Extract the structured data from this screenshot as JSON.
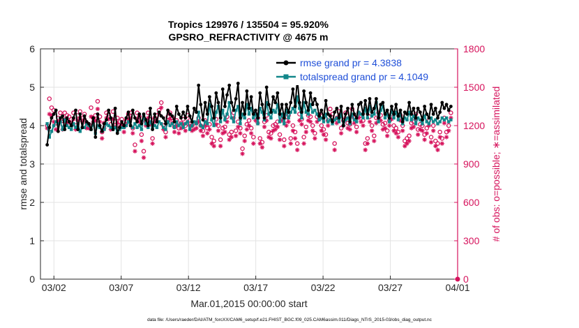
{
  "chart_data": {
    "type": "line",
    "title_line1": "Tropics 129976 / 135504 = 95.920%",
    "title_line2": "GPSRO_REFRACTIVITY @ 4675 m",
    "xlabel": "Mar.01,2015 00:00:00 start",
    "ylabel_left": "rmse and totalspread",
    "ylabel_right": "# of obs: o=possible; ∗=assimilated",
    "x_ticks": [
      "03/02",
      "03/07",
      "03/12",
      "03/17",
      "03/22",
      "03/27",
      "04/01"
    ],
    "x_tick_days": [
      1,
      6,
      11,
      16,
      21,
      26,
      31
    ],
    "x_range_days": [
      0,
      31
    ],
    "ylim_left": [
      0,
      6
    ],
    "yticks_left": [
      "0",
      "1",
      "2",
      "3",
      "4",
      "5",
      "6"
    ],
    "ylim_right": [
      0,
      1800
    ],
    "yticks_right": [
      "0",
      "300",
      "600",
      "900",
      "1200",
      "1500",
      "1800"
    ],
    "grid": true,
    "legend_position": "top-right",
    "colors": {
      "rmse": "#000000",
      "spread": "#12878a",
      "obs": "#d6135c",
      "legend_text": "#1f4fd8",
      "grid": "#e3e3e3"
    },
    "series": [
      {
        "name": "rmse grand pr = 4.3838",
        "values": [
          3.5,
          3.95,
          4.2,
          4.3,
          4.4,
          3.85,
          4.2,
          4.25,
          3.9,
          4.2,
          4.1,
          4.0,
          4.2,
          4.4,
          3.9,
          4.3,
          3.95,
          4.25,
          4.1,
          4.05,
          3.9,
          4.2,
          3.7,
          4.3,
          4.0,
          3.85,
          4.05,
          4.15,
          4.4,
          4.2,
          3.9,
          4.45,
          3.8,
          3.95,
          4.1,
          4.0,
          4.2,
          4.35,
          4.0,
          4.4,
          4.2,
          4.1,
          4.3,
          4.05,
          4.3,
          4.15,
          4.0,
          4.45,
          3.9,
          4.3,
          4.1,
          4.35,
          4.25,
          4.2,
          4.05,
          4.4,
          4.3,
          4.25,
          4.1,
          4.5,
          4.3,
          4.2,
          4.35,
          4.2,
          4.5,
          4.25,
          4.1,
          4.45,
          4.35,
          5.05,
          4.55,
          4.15,
          4.6,
          4.3,
          4.75,
          4.5,
          4.2,
          4.85,
          4.6,
          4.2,
          4.95,
          4.5,
          4.8,
          5.05,
          4.6,
          4.4,
          4.7,
          5.1,
          4.2,
          4.6,
          4.3,
          4.9,
          4.45,
          4.75,
          4.3,
          4.4,
          4.2,
          4.85,
          4.55,
          4.2,
          5.0,
          4.55,
          4.35,
          4.75,
          4.6,
          4.85,
          4.3,
          4.55,
          4.2,
          4.55,
          4.35,
          4.6,
          4.95,
          4.5,
          5.2,
          4.6,
          4.35,
          4.9,
          4.6,
          4.4,
          4.85,
          4.55,
          4.7,
          4.55,
          4.25,
          4.4,
          4.2,
          4.65,
          4.3,
          4.25,
          4.1,
          4.35,
          4.45,
          4.2,
          4.5,
          4.0,
          4.3,
          4.45,
          4.1,
          4.55,
          4.3,
          4.2,
          4.55,
          4.6,
          4.3,
          4.65,
          4.3,
          4.7,
          4.35,
          4.45,
          4.7,
          4.2,
          4.55,
          4.6,
          4.3,
          4.4,
          4.2,
          4.5,
          4.3,
          4.55,
          4.25,
          4.4,
          4.1,
          4.35,
          4.3,
          4.6,
          4.3,
          4.45,
          4.2,
          4.45,
          4.35,
          4.15,
          4.5,
          4.3,
          4.2,
          4.55,
          4.3,
          4.45,
          4.2,
          4.35,
          4.6,
          4.45,
          4.55,
          4.4,
          4.5
        ]
      },
      {
        "name": "totalspread grand pr = 4.1049",
        "values": [
          4.05,
          3.7,
          3.85,
          4.0,
          4.1,
          4.05,
          4.1,
          3.9,
          4.15,
          4.0,
          3.95,
          3.9,
          4.05,
          3.95,
          4.05,
          3.85,
          3.95,
          3.95,
          4.05,
          4.0,
          3.9,
          4.05,
          3.8,
          4.0,
          3.95,
          3.85,
          3.9,
          4.05,
          4.0,
          3.95,
          3.9,
          3.95,
          3.85,
          3.9,
          3.95,
          3.95,
          4.0,
          4.1,
          4.0,
          3.95,
          4.05,
          3.95,
          4.0,
          3.9,
          4.25,
          4.05,
          3.95,
          4.1,
          3.95,
          4.0,
          3.95,
          4.1,
          4.05,
          3.95,
          3.9,
          4.1,
          4.0,
          4.05,
          3.95,
          4.1,
          4.0,
          4.05,
          3.95,
          4.05,
          4.1,
          3.9,
          4.0,
          4.1,
          4.05,
          4.35,
          4.0,
          3.95,
          4.1,
          4.05,
          4.55,
          4.15,
          4.0,
          4.35,
          4.5,
          4.1,
          4.4,
          4.15,
          4.3,
          4.6,
          4.2,
          4.1,
          4.4,
          4.5,
          4.05,
          4.3,
          4.2,
          4.55,
          4.3,
          4.45,
          4.2,
          4.3,
          4.05,
          4.45,
          4.35,
          4.15,
          4.6,
          4.3,
          4.2,
          4.4,
          4.35,
          4.55,
          4.1,
          4.3,
          4.05,
          4.4,
          4.2,
          4.35,
          4.45,
          4.35,
          4.75,
          4.45,
          4.2,
          4.6,
          4.35,
          4.3,
          4.55,
          4.35,
          4.4,
          4.3,
          4.15,
          4.2,
          4.1,
          4.3,
          4.1,
          4.15,
          4.05,
          4.15,
          4.2,
          4.1,
          4.3,
          4.0,
          4.15,
          4.2,
          4.05,
          4.3,
          4.15,
          4.1,
          4.35,
          4.3,
          4.2,
          4.45,
          4.2,
          4.5,
          4.25,
          4.3,
          4.6,
          4.1,
          4.4,
          4.5,
          4.2,
          4.3,
          4.1,
          4.4,
          4.2,
          4.35,
          4.15,
          4.3,
          4.05,
          4.2,
          4.15,
          4.35,
          4.15,
          4.25,
          4.05,
          4.2,
          4.15,
          4.05,
          4.25,
          4.1,
          4.05,
          4.2,
          4.1,
          4.15,
          4.05,
          4.1,
          4.2,
          4.15,
          4.2,
          4.1,
          4.15
        ]
      }
    ],
    "obs_possible": [
      1200,
      1410,
      1340,
      1320,
      1220,
      1260,
      1300,
      1210,
      1300,
      1280,
      1270,
      1250,
      1300,
      1200,
      1280,
      1310,
      1260,
      1290,
      1220,
      1210,
      1340,
      1260,
      1280,
      1390,
      1270,
      1150,
      1220,
      1300,
      1290,
      1210,
      1310,
      1230,
      1260,
      1230,
      1250,
      1190,
      1240,
      1290,
      1300,
      1180,
      1050,
      1300,
      1270,
      1130,
      1000,
      1230,
      1300,
      1250,
      1100,
      1260,
      1280,
      1320,
      1380,
      1200,
      1150,
      1270,
      1300,
      1260,
      1190,
      1240,
      1180,
      1220,
      1250,
      1200,
      1280,
      1240,
      1200,
      1220,
      1220,
      1260,
      1200,
      1160,
      1240,
      1180,
      1210,
      1110,
      1080,
      1250,
      1200,
      1090,
      1180,
      1190,
      1270,
      1130,
      1150,
      1300,
      1160,
      1230,
      1180,
      1020,
      1120,
      1210,
      1240,
      1180,
      1110,
      1290,
      1260,
      1100,
      1070,
      1230,
      1280,
      1150,
      1140,
      1200,
      1210,
      1230,
      1130,
      1280,
      1090,
      1240,
      1280,
      1100,
      1200,
      1150,
      1060,
      1290,
      1250,
      1110,
      1190,
      1280,
      1270,
      1200,
      1140,
      1270,
      1290,
      1200,
      1170,
      1130,
      1240,
      1330,
      1290,
      1060,
      1260,
      1310,
      1180,
      1240,
      1300,
      1220,
      1210,
      1330,
      1260,
      1190,
      1300,
      1280,
      1240,
      1060,
      1100,
      1270,
      1200,
      1120,
      1260,
      1300,
      1280,
      1210,
      1220,
      1160,
      1240,
      1290,
      1200,
      1180,
      1150,
      1280,
      1200,
      1080,
      1100,
      1120,
      1220,
      1230,
      1290,
      1170,
      1210,
      1200,
      1130,
      1180,
      1240,
      1110,
      1200,
      1080,
      1060,
      1150,
      1100,
      1260,
      1150,
      1200,
      1300
    ],
    "obs_assimilated": [
      1180,
      1290,
      1280,
      1230,
      1170,
      1230,
      1240,
      1170,
      1250,
      1220,
      1230,
      1210,
      1250,
      1170,
      1240,
      1260,
      1230,
      1250,
      1180,
      1180,
      1270,
      1230,
      1240,
      1330,
      1230,
      1100,
      1180,
      1260,
      1250,
      1170,
      1250,
      1190,
      1220,
      1190,
      1210,
      1150,
      1210,
      1250,
      1260,
      1140,
      1000,
      1250,
      1230,
      1080,
      950,
      1200,
      1260,
      1210,
      1060,
      1230,
      1240,
      1290,
      1340,
      1170,
      1110,
      1230,
      1250,
      1220,
      1150,
      1200,
      1140,
      1180,
      1210,
      1160,
      1230,
      1200,
      1160,
      1170,
      1180,
      1230,
      1160,
      1120,
      1200,
      1140,
      1170,
      1060,
      1040,
      1210,
      1160,
      1040,
      1140,
      1150,
      1230,
      1090,
      1110,
      1260,
      1120,
      1190,
      1140,
      980,
      1080,
      1170,
      1200,
      1140,
      1060,
      1240,
      1220,
      1060,
      1030,
      1190,
      1240,
      1110,
      1100,
      1160,
      1170,
      1190,
      1090,
      1240,
      1040,
      1200,
      1230,
      1060,
      1160,
      1100,
      1010,
      1240,
      1210,
      1060,
      1150,
      1240,
      1230,
      1160,
      1100,
      1230,
      1250,
      1160,
      1130,
      1090,
      1200,
      1280,
      1240,
      1010,
      1220,
      1270,
      1140,
      1200,
      1260,
      1180,
      1170,
      1280,
      1220,
      1150,
      1260,
      1230,
      1200,
      1010,
      1060,
      1230,
      1160,
      1080,
      1220,
      1260,
      1240,
      1170,
      1180,
      1120,
      1200,
      1250,
      1160,
      1140,
      1110,
      1240,
      1160,
      1040,
      1060,
      1080,
      1180,
      1190,
      1250,
      1130,
      1170,
      1160,
      1090,
      1140,
      1200,
      1070,
      1160,
      1040,
      1010,
      1110,
      1060,
      1220,
      1110,
      1160,
      1260
    ],
    "footer": "data file: /Users/raeder/DAI/ATM_forcXX/CAM6_setup/f.e21.FHIST_BGC.f09_025.CAM6assim.011/Diags_NTrS_2015-03/obs_diag_output.nc"
  }
}
